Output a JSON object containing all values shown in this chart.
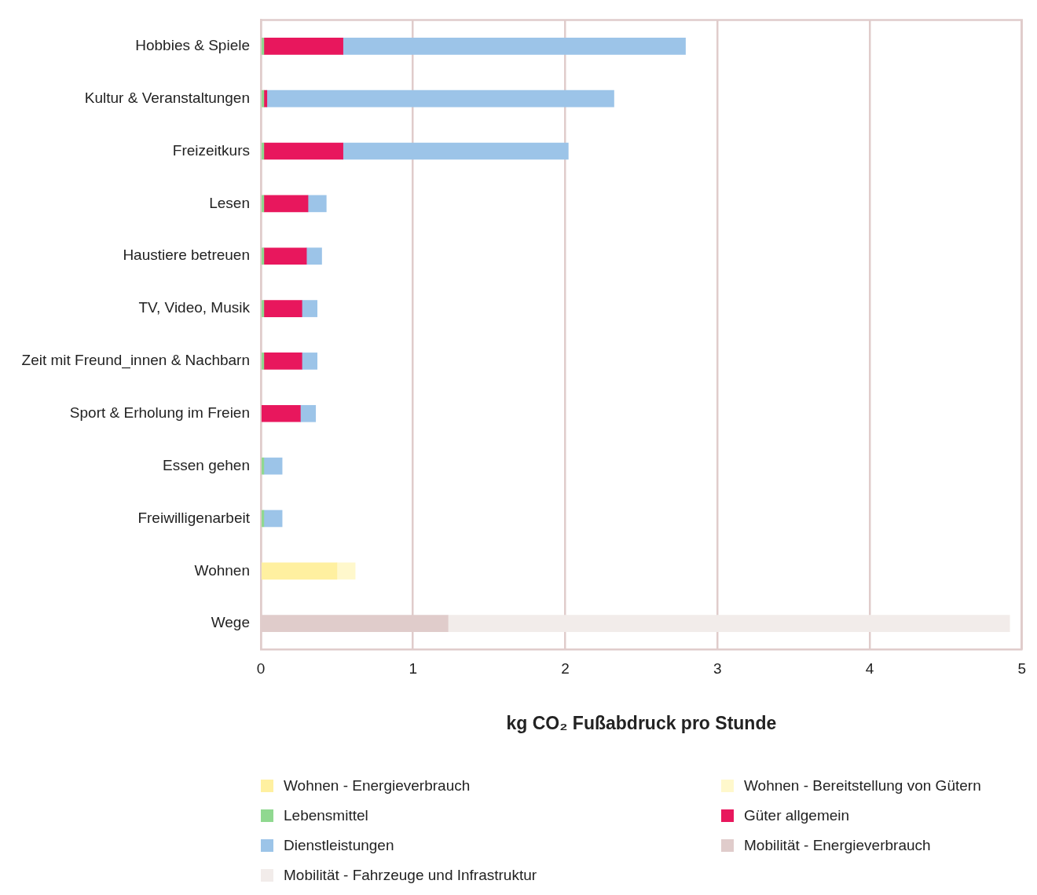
{
  "chart_data": {
    "type": "bar",
    "orientation": "horizontal",
    "stacked": true,
    "xlabel": "kg CO₂ Fußabdruck pro Stunde",
    "categories": [
      "Hobbies & Spiele",
      "Kultur & Veranstaltungen",
      "Freizeitkurs",
      "Lesen",
      "Haustiere betreuen",
      "TV, Video, Musik",
      "Zeit mit Freund_innen & Nachbarn",
      "Sport & Erholung im Freien",
      "Essen gehen",
      "Freiwilligenarbeit",
      "Wohnen",
      "Wege"
    ],
    "series": [
      {
        "name": "Wohnen - Energieverbrauch",
        "color": "#fff0a0",
        "values": [
          null,
          null,
          null,
          null,
          null,
          null,
          null,
          null,
          null,
          null,
          0.5,
          null
        ]
      },
      {
        "name": "Wohnen - Bereitstellung von Gütern",
        "color": "#fff8cc",
        "values": [
          null,
          null,
          null,
          null,
          null,
          null,
          null,
          null,
          null,
          null,
          0.12,
          null
        ]
      },
      {
        "name": "Lebensmittel",
        "color": "#90d890",
        "values": [
          0.02,
          0.02,
          0.02,
          0.02,
          0.02,
          0.02,
          0.02,
          null,
          0.02,
          0.02,
          null,
          null
        ]
      },
      {
        "name": "Güter allgemein",
        "color": "#e8175d",
        "values": [
          0.52,
          0.02,
          0.52,
          0.29,
          0.28,
          0.25,
          0.25,
          0.26,
          null,
          null,
          null,
          null
        ]
      },
      {
        "name": "Dienstleistungen",
        "color": "#9cc4e8",
        "values": [
          2.25,
          2.28,
          1.48,
          0.12,
          0.1,
          0.1,
          0.1,
          0.1,
          0.12,
          0.12,
          null,
          null
        ]
      },
      {
        "name": "Mobilität - Energieverbrauch",
        "color": "#e0cccb",
        "values": [
          null,
          null,
          null,
          null,
          null,
          null,
          null,
          null,
          null,
          null,
          null,
          1.23
        ]
      },
      {
        "name": "Mobilität - Fahrzeuge und Infrastruktur",
        "color": "#f2ecea",
        "values": [
          null,
          null,
          null,
          null,
          null,
          null,
          null,
          null,
          null,
          null,
          null,
          3.69
        ]
      }
    ],
    "xlim": [
      0,
      5
    ],
    "xticks": [
      0,
      1,
      2,
      3,
      4,
      5
    ],
    "grid": "x",
    "legend": "bottom"
  }
}
